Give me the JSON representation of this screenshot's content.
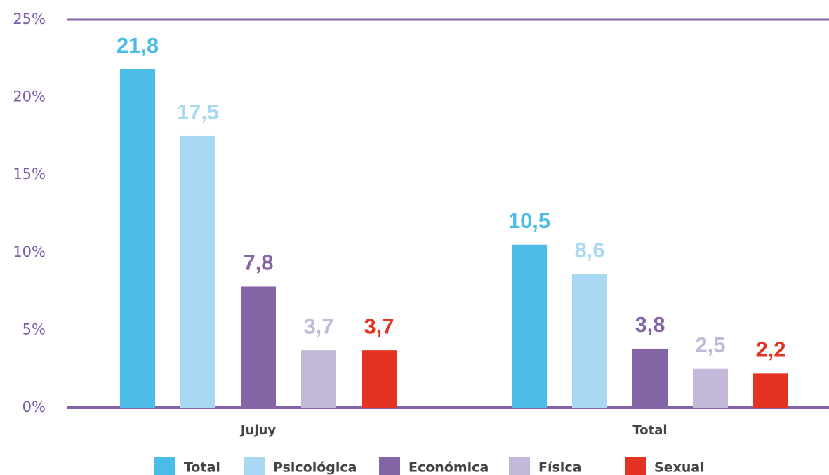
{
  "chart_data": {
    "type": "bar",
    "categories": [
      "Jujuy",
      "Total"
    ],
    "series": [
      {
        "name": "Total",
        "color": "#4bbbe8",
        "values": [
          21.8,
          10.5
        ],
        "value_labels": [
          "21,8",
          "10,5"
        ]
      },
      {
        "name": "Psicológica",
        "color": "#a9d8f2",
        "values": [
          17.5,
          8.6
        ],
        "value_labels": [
          "17,5",
          "8,6"
        ]
      },
      {
        "name": "Económica",
        "color": "#8365a5",
        "values": [
          7.8,
          3.8
        ],
        "value_labels": [
          "7,8",
          "3,8"
        ]
      },
      {
        "name": "Física",
        "color": "#c4b8da",
        "values": [
          3.7,
          2.5
        ],
        "value_labels": [
          "3,7",
          "2,5"
        ]
      },
      {
        "name": "Sexual",
        "color": "#e53323",
        "values": [
          3.7,
          2.2
        ],
        "value_labels": [
          "3,7",
          "2,2"
        ]
      }
    ],
    "ylim": [
      0,
      25
    ],
    "yticks": [
      {
        "value": 0,
        "label": "0%"
      },
      {
        "value": 5,
        "label": "5%"
      },
      {
        "value": 10,
        "label": "10%"
      },
      {
        "value": 15,
        "label": "15%"
      },
      {
        "value": 20,
        "label": "20%"
      },
      {
        "value": 25,
        "label": "25%"
      }
    ],
    "grid": false
  }
}
